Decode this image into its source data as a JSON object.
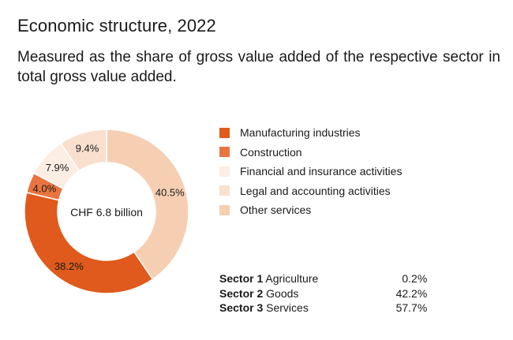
{
  "title": "Economic structure, 2022",
  "subtitle": "Measured as the share of gross value added of the respective sector in total gross value added.",
  "chart_data": {
    "type": "pie",
    "donut": true,
    "center_label": "CHF 6.8 billion",
    "slices": [
      {
        "name": "Other services",
        "value": 40.5,
        "label": "40.5%",
        "color": "#f6cfb3"
      },
      {
        "name": "Manufacturing industries",
        "value": 38.2,
        "label": "38.2%",
        "color": "#df5a1c"
      },
      {
        "name": "Construction",
        "value": 4.0,
        "label": "4.0%",
        "color": "#ea7440"
      },
      {
        "name": "Financial and insurance activities",
        "value": 7.9,
        "label": "7.9%",
        "color": "#fdeee4"
      },
      {
        "name": "Legal and accounting activities",
        "value": 9.4,
        "label": "9.4%",
        "color": "#f9e0ce"
      }
    ],
    "legend": [
      {
        "label": "Manufacturing industries",
        "color": "#df5a1c"
      },
      {
        "label": "Construction",
        "color": "#ea7440"
      },
      {
        "label": "Financial and insurance activities",
        "color": "#fdeee4"
      },
      {
        "label": "Legal and accounting activities",
        "color": "#f9e0ce"
      },
      {
        "label": "Other services",
        "color": "#f6cfb3"
      }
    ],
    "legend_position": "right"
  },
  "sectors": [
    {
      "name": "Sector 1",
      "desc": "Agriculture",
      "value": "0.2%"
    },
    {
      "name": "Sector 2",
      "desc": "Goods",
      "value": "42.2%"
    },
    {
      "name": "Sector 3",
      "desc": "Services",
      "value": "57.7%"
    }
  ]
}
